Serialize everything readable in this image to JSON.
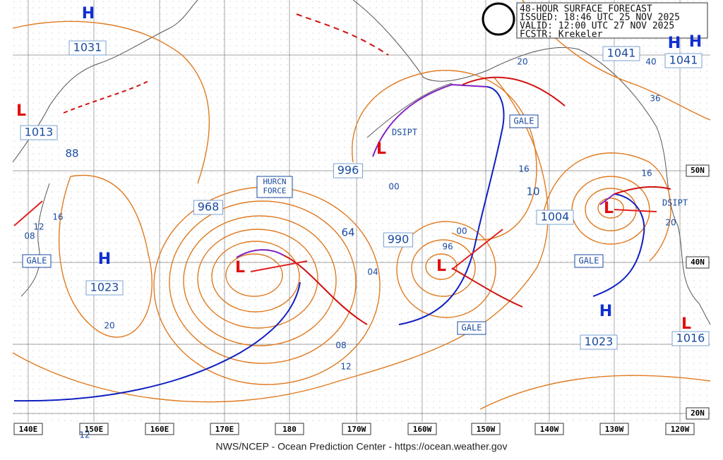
{
  "header": {
    "title": "48-HOUR SURFACE FORECAST",
    "issued": "ISSUED: 18:46 UTC 25 NOV 2025",
    "valid": "VALID:  12:00 UTC 27 NOV 2025",
    "forecaster": "FCSTR:  Krekeler"
  },
  "footer": "NWS/NCEP - Ocean Prediction Center - https://ocean.weather.gov",
  "longitudes": [
    "140E",
    "150E",
    "160E",
    "170E",
    "180",
    "170W",
    "160W",
    "150W",
    "140W",
    "130W",
    "120W"
  ],
  "latitudes": [
    "50N",
    "40N",
    "20N"
  ],
  "centers": [
    {
      "symbol": "H",
      "pressure": "1031"
    },
    {
      "symbol": "L",
      "pressure": "1013"
    },
    {
      "symbol": "H",
      "pressure": "1023"
    },
    {
      "symbol": "L",
      "pressure": "968"
    },
    {
      "symbol": "L",
      "pressure": "996"
    },
    {
      "symbol": "L",
      "pressure": "990"
    },
    {
      "symbol": "L",
      "pressure": "1004"
    },
    {
      "symbol": "H",
      "pressure": "1041"
    },
    {
      "symbol": "H",
      "pressure": "1041"
    },
    {
      "symbol": "H",
      "pressure": "1023"
    },
    {
      "symbol": "L",
      "pressure": "1016"
    }
  ],
  "isobar_labels": [
    "88",
    "16",
    "12",
    "08",
    "20",
    "64",
    "04",
    "08",
    "12",
    "00",
    "96",
    "00",
    "10",
    "16",
    "20",
    "40",
    "36",
    "16",
    "20",
    "12"
  ],
  "warnings": [
    "GALE",
    "GALE",
    "GALE",
    "GALE"
  ],
  "hurricane_warning": [
    "HURCN",
    "FORCE"
  ],
  "dissipating": [
    "DSIPT",
    "DSIPT"
  ]
}
